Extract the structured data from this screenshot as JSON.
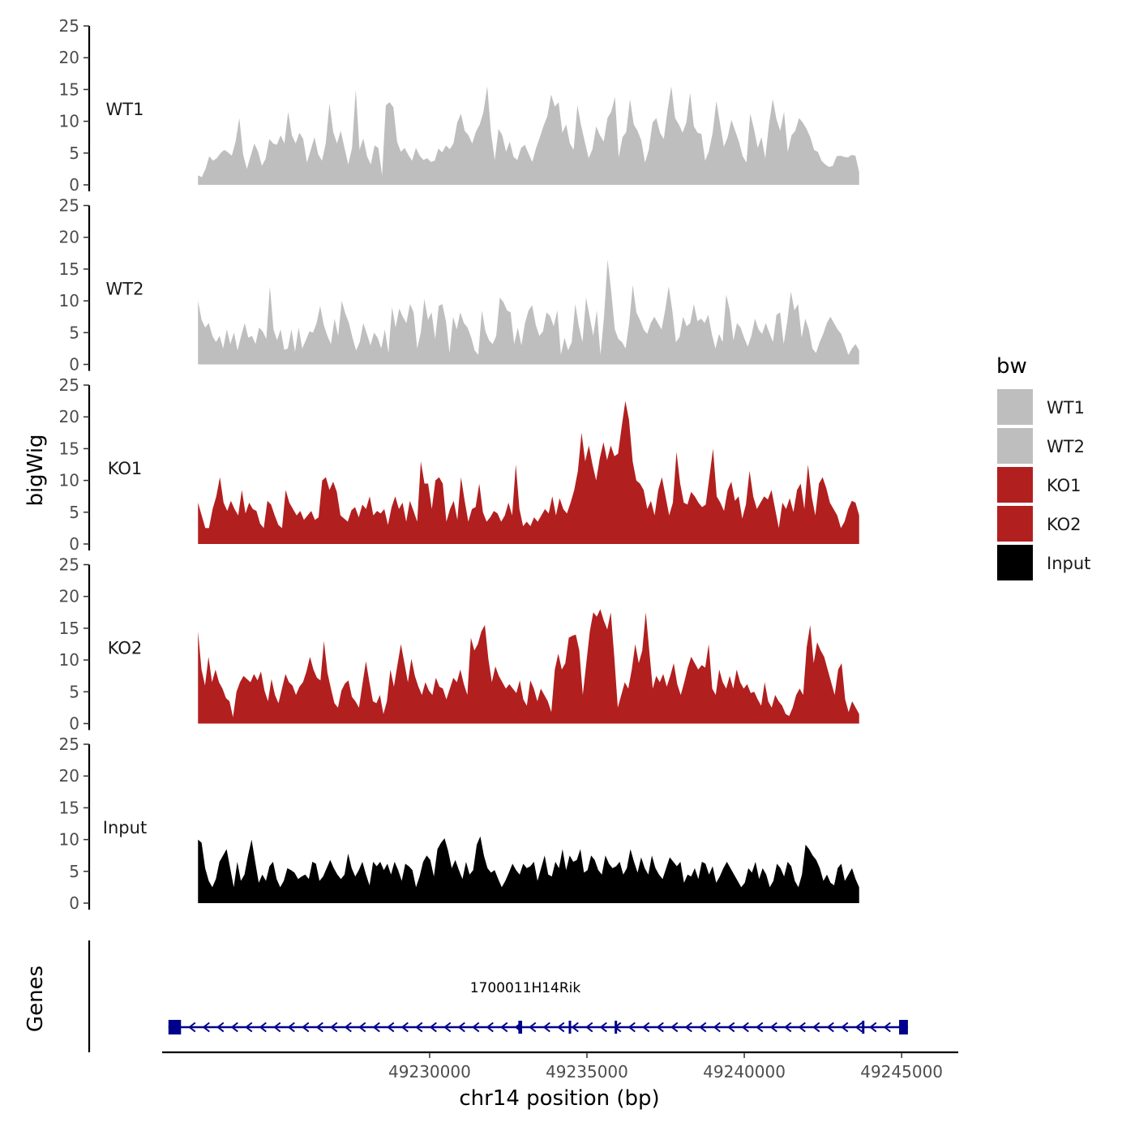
{
  "chart_data": {
    "type": "area",
    "ylabel": "bigWig",
    "xlabel": "chr14 position (bp)",
    "genes_label": "Genes",
    "xlim": [
      49221500,
      49246800
    ],
    "ylim": [
      0,
      25
    ],
    "y_ticks": [
      "0",
      "5",
      "10",
      "15",
      "20",
      "25"
    ],
    "x_ticks": [
      {
        "value": 49230000,
        "label": "49230000"
      },
      {
        "value": 49235000,
        "label": "49235000"
      },
      {
        "value": 49240000,
        "label": "49240000"
      },
      {
        "value": 49245000,
        "label": "49245000"
      }
    ],
    "region": [
      49222640,
      49243650
    ],
    "legend": {
      "title": "bw",
      "entries": [
        {
          "name": "WT1",
          "color": "#bebebe"
        },
        {
          "name": "WT2",
          "color": "#bebebe"
        },
        {
          "name": "KO1",
          "color": "#b21f1f"
        },
        {
          "name": "KO2",
          "color": "#b21f1f"
        },
        {
          "name": "Input",
          "color": "#000000"
        }
      ]
    },
    "series": [
      {
        "name": "WT1",
        "color": "#bebebe",
        "values": [
          1.5,
          1.2,
          2.5,
          4.5,
          3.8,
          4.2,
          5,
          5.5,
          5.1,
          4.6,
          6.8,
          10.5,
          4.8,
          2.5,
          4.5,
          6.5,
          5.2,
          3,
          4.1,
          7.2,
          6.5,
          6.3,
          7.8,
          6.5,
          11.5,
          7.8,
          6.5,
          8.2,
          7.2,
          3.5,
          5.5,
          7.5,
          4.8,
          3.8,
          6.5,
          12.8,
          8.3,
          6.5,
          8.5,
          5.8,
          3.2,
          5.8,
          15,
          5.5,
          7.3,
          4.5,
          3.2,
          6.2,
          5.8,
          1.5,
          12.5,
          13,
          12.2,
          6.8,
          5.2,
          5.8,
          4.7,
          3.8,
          5.8,
          4.6,
          3.9,
          4.2,
          3.6,
          3.8,
          5.7,
          5.1,
          6.2,
          5.6,
          6.5,
          9.8,
          11.2,
          8.5,
          7.8,
          6.5,
          8.4,
          9.5,
          11.5,
          15.5,
          8.2,
          3.9,
          8.8,
          7.8,
          5.2,
          6.8,
          4.4,
          3.9,
          5.8,
          6.3,
          4.9,
          3.6,
          5.8,
          7.5,
          9.3,
          10.8,
          14.2,
          12.3,
          13,
          8.2,
          9.5,
          6.5,
          5.5,
          12.5,
          9.3,
          6.7,
          4.2,
          5.6,
          9.2,
          7.8,
          6.8,
          10.5,
          11.5,
          13.8,
          4.3,
          7.5,
          8.3,
          13.5,
          9.5,
          8.5,
          7,
          3.5,
          5.5,
          9.8,
          10.5,
          8.2,
          7.2,
          11.8,
          15.5,
          10.5,
          9.5,
          8.2,
          9.8,
          14.5,
          9.2,
          8.2,
          8,
          3.8,
          5.3,
          8.2,
          13.2,
          9.5,
          6,
          7.5,
          10.2,
          8.5,
          6.8,
          4.5,
          3.5,
          11.2,
          8.8,
          5.8,
          7.5,
          4.2,
          9.5,
          13.5,
          10.3,
          8.5,
          11.5,
          5.2,
          7.8,
          8.5,
          10.5,
          9.8,
          8.8,
          7.5,
          5.5,
          5.2,
          3.8,
          3.2,
          2.8,
          3,
          4.5,
          4.6,
          4.4,
          4.3,
          4.7,
          4.6,
          2
        ]
      },
      {
        "name": "WT2",
        "color": "#bebebe",
        "values": [
          10,
          7,
          5.8,
          6.5,
          4.5,
          3.5,
          4.5,
          2.5,
          5.5,
          3.2,
          5,
          2.2,
          4.5,
          6.5,
          4.2,
          4.5,
          3.2,
          5.8,
          5.2,
          4,
          12.3,
          5.5,
          3.8,
          5.5,
          2.3,
          2.5,
          5.5,
          2,
          5.8,
          2.5,
          3.8,
          5.2,
          5,
          6.5,
          9.2,
          6.2,
          4.5,
          3.2,
          7.2,
          4.5,
          10,
          8,
          6.5,
          4.2,
          2.2,
          3.5,
          6.5,
          4.8,
          3,
          5,
          4.2,
          2.5,
          5.5,
          1.8,
          9,
          5.8,
          8.8,
          7.5,
          6.5,
          9.5,
          8.2,
          2.5,
          5,
          10.3,
          7,
          8.2,
          4,
          9.2,
          9.5,
          6.8,
          1.8,
          7.5,
          5.5,
          8.2,
          6.5,
          5.8,
          4.3,
          2.2,
          1.5,
          8.5,
          5.2,
          3.8,
          3.2,
          4.5,
          10.5,
          9.8,
          8.5,
          8.2,
          3.2,
          5.8,
          3,
          6.5,
          8.5,
          9.3,
          6.2,
          4.5,
          5.2,
          8.2,
          7.6,
          6,
          8.5,
          1.5,
          4.2,
          2.2,
          3.5,
          9.5,
          6,
          3.5,
          10.5,
          7.5,
          4.5,
          8.5,
          1.5,
          7.5,
          16.5,
          11.5,
          5.5,
          4,
          3.5,
          2.5,
          6.5,
          12.5,
          8.2,
          7,
          5.5,
          4.8,
          6.5,
          7.5,
          6.5,
          5.5,
          8.5,
          12.3,
          8.5,
          3.5,
          4.3,
          7.5,
          6,
          6.5,
          9.5,
          6.8,
          7.2,
          6.5,
          7.8,
          4.8,
          2.5,
          4.8,
          3.5,
          11,
          8.5,
          3.8,
          6.5,
          5.8,
          4.2,
          2.8,
          4.5,
          7.2,
          5.5,
          4.8,
          6.5,
          5,
          3.5,
          7.8,
          8.2,
          3.2,
          6.8,
          11.5,
          8.5,
          9.5,
          4.2,
          7.2,
          5.5,
          2.5,
          1.8,
          3.5,
          4.8,
          6.5,
          7.5,
          6.5,
          5.5,
          4.8,
          3.2,
          1.5,
          2.5,
          3.2,
          2.2
        ]
      },
      {
        "name": "KO1",
        "color": "#b21f1f",
        "values": [
          6.5,
          4.5,
          2.5,
          2.5,
          5.5,
          7.5,
          10.5,
          6.5,
          5.2,
          6.8,
          5.5,
          4.5,
          8.5,
          4.8,
          6.5,
          5.5,
          5.2,
          3.2,
          2.5,
          6.8,
          6.2,
          4.5,
          3,
          2.5,
          8.5,
          6.5,
          5.5,
          4.5,
          5.2,
          3.8,
          4.5,
          5.2,
          3.8,
          4.2,
          10,
          10.5,
          8.5,
          9.8,
          8.2,
          4.5,
          4,
          3.5,
          5.3,
          5.8,
          4.2,
          6.2,
          5.5,
          7.5,
          4.5,
          5.2,
          4.8,
          5.5,
          3,
          5.8,
          7.5,
          5.5,
          6.5,
          3.5,
          6.8,
          5.2,
          3.5,
          13,
          9.5,
          9.5,
          5.5,
          10,
          10.5,
          9.5,
          3.5,
          5.5,
          6.8,
          3.8,
          10.5,
          6.8,
          3.5,
          5.5,
          5.8,
          9.5,
          5,
          3.5,
          4.2,
          5.2,
          4.8,
          3.5,
          4.5,
          6.5,
          4.5,
          12.5,
          5.5,
          2.8,
          3.5,
          2.8,
          4.2,
          3.5,
          4.5,
          5.5,
          4.8,
          7.5,
          4.5,
          7.2,
          5.5,
          4.8,
          6.5,
          8.5,
          11.5,
          17.5,
          13,
          15.5,
          12.5,
          10,
          13.5,
          16,
          13.2,
          15.5,
          13.8,
          14.2,
          18.5,
          22.5,
          19.5,
          13,
          10,
          9.5,
          8.5,
          5.5,
          6.8,
          4.5,
          8.5,
          10.5,
          7.5,
          4.5,
          6.5,
          14.5,
          9.5,
          6.5,
          6.2,
          8.2,
          7.5,
          6.5,
          5.8,
          6.2,
          10.5,
          15,
          7.5,
          6.5,
          5.2,
          8.5,
          9.8,
          6.8,
          7.5,
          4,
          6.2,
          11.5,
          7.5,
          5.5,
          6.5,
          7.5,
          7,
          8.5,
          5.5,
          2.5,
          6.5,
          5.5,
          7.2,
          5,
          8.5,
          9.5,
          5.5,
          12.5,
          7.5,
          4.5,
          9.5,
          10.5,
          8.8,
          6.5,
          5.5,
          4.5,
          2.5,
          3.5,
          5.5,
          6.8,
          6.5,
          4.5
        ]
      },
      {
        "name": "KO2",
        "color": "#b21f1f",
        "values": [
          14.5,
          8.5,
          6,
          10.5,
          6.5,
          8.5,
          6.5,
          5.5,
          4,
          3.5,
          1,
          5,
          6.5,
          7.5,
          7,
          6.5,
          7.8,
          6.8,
          8.2,
          5.2,
          3.5,
          7,
          4.5,
          3.2,
          5.5,
          7.8,
          6.5,
          6,
          4.5,
          5.8,
          6.5,
          8.2,
          10.5,
          8.5,
          7.2,
          6.8,
          13,
          8,
          5.5,
          3.2,
          2.5,
          5.2,
          6.3,
          6.8,
          4.2,
          3.5,
          2.5,
          6.2,
          9.8,
          6.5,
          3.5,
          3.2,
          4.5,
          1.5,
          3.5,
          8.5,
          5.8,
          9.2,
          12.5,
          9.5,
          6.5,
          10.2,
          7.5,
          5.8,
          4.5,
          6.5,
          5.2,
          4.5,
          7.2,
          5.8,
          5.5,
          3.8,
          5.5,
          7.2,
          6.5,
          8.5,
          6.2,
          4.5,
          13.5,
          11.5,
          12.5,
          14.5,
          15.5,
          10.2,
          6.5,
          9,
          7.5,
          6.5,
          5.5,
          6.2,
          5.5,
          4.8,
          6.8,
          3.8,
          2.8,
          6.8,
          5.5,
          3.5,
          5.5,
          4.5,
          3.5,
          1.8,
          8.5,
          11,
          8.5,
          9.5,
          13.5,
          13.8,
          14,
          11.5,
          4.5,
          9.5,
          14.5,
          17.5,
          16.8,
          18,
          16.2,
          14.8,
          17.5,
          10.5,
          2.5,
          4.5,
          6.5,
          5.5,
          8.5,
          12.5,
          9.5,
          11.5,
          17.5,
          11.5,
          5.5,
          7.5,
          6.5,
          7.8,
          5.8,
          7.5,
          9.5,
          6.2,
          4.5,
          6.5,
          8.8,
          10.5,
          9.5,
          8.5,
          9.2,
          8.8,
          12.5,
          5.5,
          4.5,
          8.5,
          6.5,
          5.5,
          7.5,
          5.5,
          8.5,
          6.5,
          5.5,
          6.2,
          4.8,
          5,
          3.8,
          2.8,
          6.5,
          3.5,
          2.5,
          4.5,
          3.5,
          2.8,
          1.5,
          1.2,
          2.5,
          4.5,
          5.5,
          4.5,
          12,
          15.5,
          9.5,
          12.8,
          11.5,
          10.5,
          8.5,
          6.5,
          4.5,
          8.5,
          9.5,
          3.8,
          1.8,
          3.5,
          2.5,
          1.5
        ]
      },
      {
        "name": "Input",
        "color": "#000000",
        "values": [
          10,
          9.5,
          5.5,
          3.5,
          2.5,
          3.8,
          6.5,
          7.5,
          8.5,
          5.5,
          2.5,
          6.5,
          3.5,
          4.5,
          7.5,
          10,
          6.5,
          3.2,
          4.5,
          3.5,
          5.8,
          6.5,
          3.8,
          2.5,
          3.5,
          5.5,
          5.2,
          4.8,
          3.8,
          4.2,
          4.5,
          3.8,
          6.5,
          6.2,
          3.5,
          4.2,
          5.5,
          6.8,
          5.5,
          4.5,
          3.8,
          4.5,
          7.8,
          5.5,
          4.2,
          5.2,
          6.5,
          4.5,
          2.8,
          6.5,
          5.8,
          6.5,
          5.2,
          6.2,
          4.5,
          6.5,
          5.2,
          3.5,
          6.2,
          5.8,
          5.2,
          2.5,
          4.2,
          6.5,
          7.5,
          6.8,
          4.2,
          8.5,
          9.5,
          10.2,
          8.2,
          5.5,
          6.8,
          5.2,
          3.8,
          6.5,
          4.5,
          5.2,
          9.2,
          10.5,
          7.5,
          5.5,
          4.8,
          5.2,
          3.8,
          2.5,
          3.5,
          4.8,
          6.2,
          5.2,
          4.5,
          6.2,
          5.5,
          5.8,
          6.5,
          3.5,
          5.5,
          7.5,
          4.5,
          4.2,
          6.5,
          5.5,
          8.5,
          5.2,
          7.5,
          6.5,
          6.8,
          8.5,
          4.8,
          5.2,
          7.5,
          6.8,
          5.2,
          4.5,
          7.5,
          6.2,
          5.5,
          5.8,
          6.5,
          4.5,
          5.5,
          8.5,
          6.5,
          4.8,
          7.2,
          5.5,
          4.5,
          7.5,
          5.5,
          4.5,
          3.8,
          5.5,
          7.2,
          6.5,
          5.8,
          6.5,
          3.2,
          4.5,
          4.2,
          5.5,
          3.8,
          6.5,
          6.2,
          4.5,
          5.8,
          3.2,
          4.2,
          5.5,
          6.5,
          5.5,
          4.5,
          3.5,
          2.5,
          3.2,
          5.5,
          4.8,
          6.5,
          3.8,
          5.5,
          4.5,
          2.5,
          3.5,
          6.2,
          5.5,
          4.2,
          6.5,
          5.8,
          3.5,
          2.5,
          4.5,
          9.2,
          8.5,
          7.5,
          6.8,
          5.5,
          3.5,
          4.5,
          3.2,
          2.8,
          5.5,
          6.2,
          3.5,
          4.5,
          5.5,
          3.8,
          2.5
        ]
      }
    ],
    "gene": {
      "name": "1700011H14Rik",
      "strand": "-",
      "start": 49221700,
      "end": 49245200,
      "color": "#00008b",
      "exons": [
        {
          "start": 49221700,
          "end": 49222100
        },
        {
          "start": 49232820,
          "end": 49232940
        },
        {
          "start": 49234420,
          "end": 49234480
        },
        {
          "start": 49235880,
          "end": 49235930
        },
        {
          "start": 49243740,
          "end": 49243790
        },
        {
          "start": 49244920,
          "end": 49245200
        }
      ]
    }
  }
}
